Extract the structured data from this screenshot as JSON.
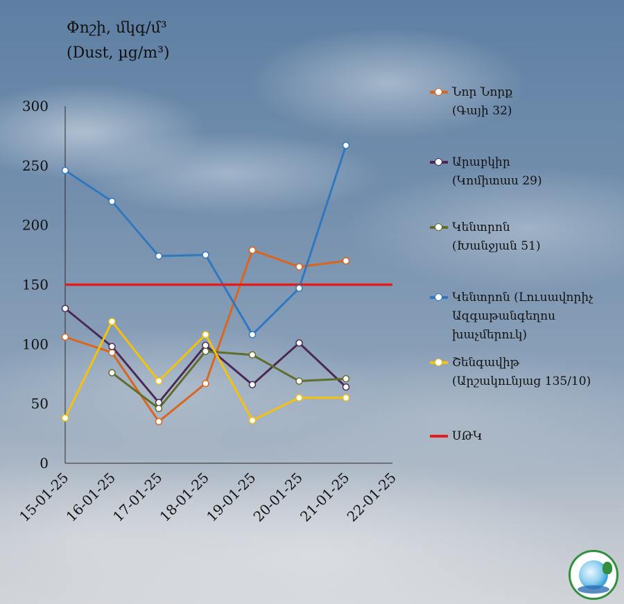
{
  "title": {
    "line1": "Փոշի, մկգ/մ³",
    "line2": "(Dust, µg/m³)"
  },
  "chart_data": {
    "type": "line",
    "categories": [
      "15-01-25",
      "16-01-25",
      "17-01-25",
      "18-01-25",
      "19-01-25",
      "20-01-25",
      "21-01-25",
      "22-01-25"
    ],
    "ylim": [
      0,
      300
    ],
    "yticks": [
      0,
      50,
      100,
      150,
      200,
      250,
      300
    ],
    "grid": false,
    "legend_position": "right",
    "series": [
      {
        "name": "Նոր Նորք (Գայի 32)",
        "legend_lines": [
          "Նոր Նորք",
          "(Գայի 32)"
        ],
        "color": "#d9651e",
        "values": [
          106,
          93,
          35,
          67,
          179,
          165,
          170,
          null
        ]
      },
      {
        "name": "Արաբկիր (Կոմիտաս 29)",
        "legend_lines": [
          "Արաբկիր",
          "(Կոմիտաս 29)"
        ],
        "color": "#4a2a55",
        "values": [
          130,
          98,
          51,
          99,
          66,
          101,
          64,
          null
        ]
      },
      {
        "name": "Կենտրոն (Խանջյան 51)",
        "legend_lines": [
          "Կենտրոն",
          "(Խանջյան 51)"
        ],
        "color": "#5f6e2a",
        "values": [
          null,
          76,
          46,
          94,
          91,
          69,
          71,
          null
        ]
      },
      {
        "name": "Կենտրոն (Լուսավորիչ Ազգաթանգեղոս խաչմերուկ)",
        "legend_lines": [
          "Կենտրոն (Լուսավորիչ",
          "Ազգաթանգեղոս",
          "խաչմերուկ)"
        ],
        "color": "#2f78c0",
        "values": [
          246,
          220,
          174,
          175,
          108,
          147,
          267,
          null
        ]
      },
      {
        "name": "Շենգավիթ (Արշակունյաց 135/10)",
        "legend_lines": [
          "Շենգավիթ",
          "(Արշակունյաց 135/10)"
        ],
        "color": "#f5c20b",
        "values": [
          38,
          119,
          69,
          108,
          36,
          55,
          55,
          null
        ]
      }
    ],
    "reference_line": {
      "name": "ՍԹԿ",
      "value": 150,
      "color": "#e31c1c"
    }
  }
}
